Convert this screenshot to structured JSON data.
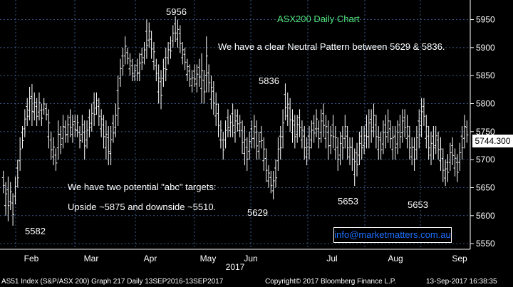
{
  "chart_data": {
    "type": "bar",
    "title": "ASX200 Daily Chart",
    "x_month_labels": [
      "Feb",
      "Mar",
      "Apr",
      "May",
      "Jun",
      "Jul",
      "Aug",
      "Sep"
    ],
    "x_year_label": "2017",
    "y_ticks": [
      5550,
      5600,
      5650,
      5700,
      5750,
      5800,
      5850,
      5900,
      5950
    ],
    "ylim": [
      5540,
      5985
    ],
    "last_price": "5744.300",
    "annotations": {
      "peak": "5956",
      "mid_high": "5836",
      "low_jun": "5629",
      "low_jul": "5653",
      "low_aug": "5653",
      "low_feb": "5582"
    },
    "notes": {
      "neutral": "We have a clear Neutral Pattern between 5629 & 5836.",
      "targets_title": "We have two potential \"abc\" targets:",
      "targets_detail": "Upside ~5875 and downside ~5510."
    },
    "link": "info@marketmatters.com.au",
    "bars": [
      [
        5640,
        5680
      ],
      [
        5600,
        5660
      ],
      [
        5590,
        5670
      ],
      [
        5610,
        5660
      ],
      [
        5582,
        5640
      ],
      [
        5620,
        5670
      ],
      [
        5650,
        5700
      ],
      [
        5680,
        5740
      ],
      [
        5720,
        5760
      ],
      [
        5740,
        5790
      ],
      [
        5760,
        5810
      ],
      [
        5770,
        5830
      ],
      [
        5760,
        5835
      ],
      [
        5770,
        5820
      ],
      [
        5760,
        5810
      ],
      [
        5770,
        5820
      ],
      [
        5760,
        5800
      ],
      [
        5780,
        5810
      ],
      [
        5770,
        5800
      ],
      [
        5720,
        5790
      ],
      [
        5700,
        5750
      ],
      [
        5690,
        5740
      ],
      [
        5680,
        5720
      ],
      [
        5700,
        5770
      ],
      [
        5710,
        5760
      ],
      [
        5720,
        5780
      ],
      [
        5730,
        5770
      ],
      [
        5730,
        5780
      ],
      [
        5740,
        5790
      ],
      [
        5730,
        5780
      ],
      [
        5740,
        5780
      ],
      [
        5740,
        5780
      ],
      [
        5720,
        5760
      ],
      [
        5730,
        5780
      ],
      [
        5700,
        5770
      ],
      [
        5720,
        5770
      ],
      [
        5740,
        5790
      ],
      [
        5750,
        5800
      ],
      [
        5760,
        5820
      ],
      [
        5780,
        5820
      ],
      [
        5760,
        5810
      ],
      [
        5740,
        5790
      ],
      [
        5720,
        5780
      ],
      [
        5700,
        5770
      ],
      [
        5690,
        5760
      ],
      [
        5690,
        5760
      ],
      [
        5730,
        5780
      ],
      [
        5740,
        5800
      ],
      [
        5760,
        5850
      ],
      [
        5830,
        5880
      ],
      [
        5850,
        5900
      ],
      [
        5870,
        5920
      ],
      [
        5870,
        5900
      ],
      [
        5850,
        5890
      ],
      [
        5840,
        5880
      ],
      [
        5840,
        5870
      ],
      [
        5840,
        5880
      ],
      [
        5840,
        5890
      ],
      [
        5860,
        5900
      ],
      [
        5870,
        5910
      ],
      [
        5880,
        5950
      ],
      [
        5900,
        5945
      ],
      [
        5880,
        5930
      ],
      [
        5860,
        5910
      ],
      [
        5840,
        5880
      ],
      [
        5800,
        5870
      ],
      [
        5790,
        5860
      ],
      [
        5830,
        5880
      ],
      [
        5840,
        5900
      ],
      [
        5870,
        5910
      ],
      [
        5880,
        5920
      ],
      [
        5900,
        5940
      ],
      [
        5910,
        5956
      ],
      [
        5900,
        5950
      ],
      [
        5890,
        5940
      ],
      [
        5870,
        5910
      ],
      [
        5860,
        5900
      ],
      [
        5840,
        5880
      ],
      [
        5830,
        5870
      ],
      [
        5820,
        5860
      ],
      [
        5830,
        5870
      ],
      [
        5820,
        5870
      ],
      [
        5830,
        5880
      ],
      [
        5800,
        5890
      ],
      [
        5800,
        5860
      ],
      [
        5820,
        5920
      ],
      [
        5820,
        5870
      ],
      [
        5790,
        5850
      ],
      [
        5780,
        5840
      ],
      [
        5760,
        5820
      ],
      [
        5740,
        5800
      ],
      [
        5720,
        5770
      ],
      [
        5700,
        5750
      ],
      [
        5720,
        5770
      ],
      [
        5740,
        5790
      ],
      [
        5740,
        5780
      ],
      [
        5740,
        5800
      ],
      [
        5730,
        5790
      ],
      [
        5750,
        5790
      ],
      [
        5740,
        5780
      ],
      [
        5710,
        5770
      ],
      [
        5690,
        5760
      ],
      [
        5680,
        5740
      ],
      [
        5700,
        5750
      ],
      [
        5720,
        5770
      ],
      [
        5720,
        5780
      ],
      [
        5700,
        5770
      ],
      [
        5700,
        5750
      ],
      [
        5720,
        5760
      ],
      [
        5680,
        5740
      ],
      [
        5660,
        5720
      ],
      [
        5650,
        5690
      ],
      [
        5640,
        5680
      ],
      [
        5629,
        5680
      ],
      [
        5650,
        5700
      ],
      [
        5680,
        5740
      ],
      [
        5700,
        5760
      ],
      [
        5720,
        5790
      ],
      [
        5770,
        5836
      ],
      [
        5760,
        5820
      ],
      [
        5750,
        5810
      ],
      [
        5730,
        5790
      ],
      [
        5720,
        5780
      ],
      [
        5730,
        5780
      ],
      [
        5740,
        5790
      ],
      [
        5720,
        5770
      ],
      [
        5700,
        5760
      ],
      [
        5690,
        5740
      ],
      [
        5700,
        5760
      ],
      [
        5720,
        5770
      ],
      [
        5730,
        5780
      ],
      [
        5740,
        5790
      ],
      [
        5720,
        5770
      ],
      [
        5730,
        5790
      ],
      [
        5740,
        5800
      ],
      [
        5720,
        5780
      ],
      [
        5700,
        5770
      ],
      [
        5710,
        5760
      ],
      [
        5720,
        5780
      ],
      [
        5700,
        5760
      ],
      [
        5680,
        5740
      ],
      [
        5690,
        5750
      ],
      [
        5700,
        5760
      ],
      [
        5720,
        5780
      ],
      [
        5700,
        5760
      ],
      [
        5690,
        5740
      ],
      [
        5680,
        5740
      ],
      [
        5653,
        5720
      ],
      [
        5670,
        5730
      ],
      [
        5690,
        5750
      ],
      [
        5700,
        5760
      ],
      [
        5710,
        5760
      ],
      [
        5720,
        5780
      ],
      [
        5720,
        5790
      ],
      [
        5730,
        5790
      ],
      [
        5740,
        5800
      ],
      [
        5720,
        5780
      ],
      [
        5700,
        5760
      ],
      [
        5700,
        5750
      ],
      [
        5710,
        5770
      ],
      [
        5720,
        5780
      ],
      [
        5730,
        5790
      ],
      [
        5720,
        5770
      ],
      [
        5700,
        5760
      ],
      [
        5700,
        5760
      ],
      [
        5710,
        5770
      ],
      [
        5720,
        5780
      ],
      [
        5730,
        5790
      ],
      [
        5740,
        5790
      ],
      [
        5720,
        5780
      ],
      [
        5700,
        5760
      ],
      [
        5690,
        5740
      ],
      [
        5680,
        5740
      ],
      [
        5700,
        5760
      ],
      [
        5720,
        5790
      ],
      [
        5740,
        5810
      ],
      [
        5760,
        5810
      ],
      [
        5720,
        5780
      ],
      [
        5700,
        5760
      ],
      [
        5690,
        5750
      ],
      [
        5700,
        5760
      ],
      [
        5710,
        5760
      ],
      [
        5700,
        5750
      ],
      [
        5680,
        5740
      ],
      [
        5660,
        5720
      ],
      [
        5653,
        5700
      ],
      [
        5660,
        5710
      ],
      [
        5680,
        5730
      ],
      [
        5690,
        5740
      ],
      [
        5670,
        5720
      ],
      [
        5660,
        5710
      ],
      [
        5680,
        5730
      ],
      [
        5700,
        5760
      ],
      [
        5720,
        5780
      ],
      [
        5730,
        5770
      ]
    ]
  },
  "footer": {
    "left": "AS51 Index (S&P/ASX 200) Graph 217  Daily 13SEP2016-13SEP2017",
    "mid": "Copyright© 2017 Bloomberg Finance L.P.",
    "right": "13-Sep-2017 16:38:35"
  }
}
